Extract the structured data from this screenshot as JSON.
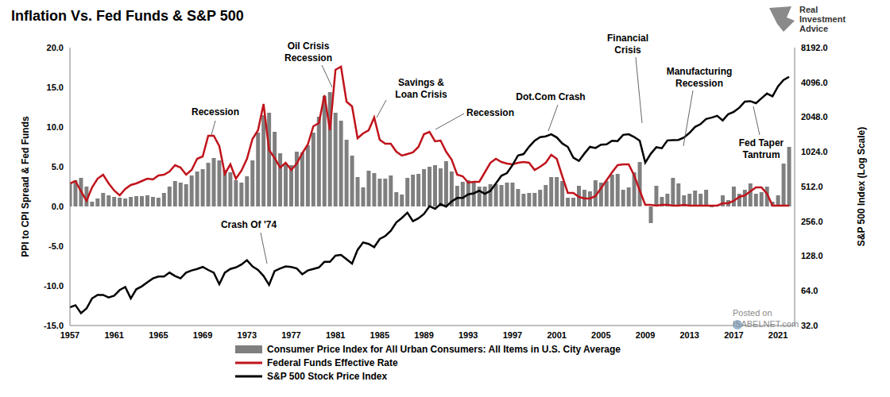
{
  "chart_data": {
    "type": "combo",
    "title": "Inflation Vs. Fed Funds & S&P 500",
    "y_label": "PPI to CPI Spread & Fed Funds",
    "y2_label": "S&P 500 Index (Log Scale)",
    "logo": "Real\nInvestment\nAdvice",
    "watermark": "Posted on\nISABELNET.com",
    "annotations": [
      "Recession",
      "Oil Crisis\nRecession",
      "Savings &\nLoan Crisis",
      "Recession",
      "Dot.Com Crash",
      "Financial\nCrisis",
      "Manufacturing\nRecession",
      "Fed Taper\nTantrum",
      "Crash Of '74"
    ],
    "x": [
      1957.0,
      1957.5,
      1958.0,
      1958.5,
      1959.0,
      1959.5,
      1960.0,
      1960.5,
      1961.0,
      1961.5,
      1962.0,
      1962.5,
      1963.0,
      1963.5,
      1964.0,
      1964.5,
      1965.0,
      1965.5,
      1966.0,
      1966.5,
      1967.0,
      1967.5,
      1968.0,
      1968.5,
      1969.0,
      1969.5,
      1970.0,
      1970.5,
      1971.0,
      1971.5,
      1972.0,
      1972.5,
      1973.0,
      1973.5,
      1974.0,
      1974.5,
      1975.0,
      1975.5,
      1976.0,
      1976.5,
      1977.0,
      1977.5,
      1978.0,
      1978.5,
      1979.0,
      1979.5,
      1980.0,
      1980.5,
      1981.0,
      1981.5,
      1982.0,
      1982.5,
      1983.0,
      1983.5,
      1984.0,
      1984.5,
      1985.0,
      1985.5,
      1986.0,
      1986.5,
      1987.0,
      1987.5,
      1988.0,
      1988.5,
      1989.0,
      1989.5,
      1990.0,
      1990.5,
      1991.0,
      1991.5,
      1992.0,
      1992.5,
      1993.0,
      1993.5,
      1994.0,
      1994.5,
      1995.0,
      1995.5,
      1996.0,
      1996.5,
      1997.0,
      1997.5,
      1998.0,
      1998.5,
      1999.0,
      1999.5,
      2000.0,
      2000.5,
      2001.0,
      2001.5,
      2002.0,
      2002.5,
      2003.0,
      2003.5,
      2004.0,
      2004.5,
      2005.0,
      2005.5,
      2006.0,
      2006.5,
      2007.0,
      2007.5,
      2008.0,
      2008.5,
      2009.0,
      2009.5,
      2010.0,
      2010.5,
      2011.0,
      2011.5,
      2012.0,
      2012.5,
      2013.0,
      2013.5,
      2014.0,
      2014.5,
      2015.0,
      2015.5,
      2016.0,
      2016.5,
      2017.0,
      2017.5,
      2018.0,
      2018.5,
      2019.0,
      2019.5,
      2020.0,
      2020.5,
      2021.0,
      2021.5,
      2022.0
    ],
    "series": [
      {
        "name": "Consumer Price Index for All Urban Consumers: All Items in U.S. City Average",
        "type": "bar",
        "color": "#7f7f7f",
        "values": [
          3.0,
          3.3,
          3.6,
          2.5,
          0.6,
          1.0,
          1.7,
          1.4,
          1.2,
          1.1,
          1.0,
          1.2,
          1.3,
          1.3,
          1.4,
          1.2,
          1.1,
          1.7,
          2.5,
          3.2,
          3.0,
          2.8,
          3.9,
          4.4,
          4.7,
          5.5,
          6.1,
          5.8,
          4.6,
          4.3,
          3.3,
          3.0,
          3.8,
          5.8,
          9.3,
          11.5,
          11.8,
          9.4,
          6.7,
          5.3,
          5.2,
          6.9,
          6.8,
          7.7,
          9.3,
          11.3,
          13.9,
          14.4,
          11.8,
          10.8,
          8.4,
          6.4,
          3.7,
          2.4,
          4.5,
          4.2,
          3.5,
          3.5,
          3.9,
          1.8,
          1.5,
          3.6,
          4.0,
          4.1,
          4.7,
          5.0,
          5.2,
          4.8,
          5.7,
          4.4,
          2.6,
          3.1,
          3.3,
          3.0,
          2.5,
          2.5,
          2.8,
          2.8,
          2.7,
          3.0,
          3.0,
          2.2,
          1.6,
          1.7,
          1.7,
          2.1,
          2.7,
          3.7,
          3.7,
          3.2,
          1.1,
          1.1,
          2.6,
          2.1,
          1.9,
          3.3,
          3.0,
          3.2,
          4.0,
          4.1,
          2.1,
          2.4,
          4.3,
          5.6,
          0.0,
          -2.1,
          2.6,
          1.2,
          1.6,
          3.6,
          2.9,
          1.4,
          1.6,
          2.0,
          1.6,
          2.1,
          -0.1,
          0.2,
          1.4,
          0.8,
          2.5,
          1.6,
          2.1,
          2.9,
          1.6,
          1.8,
          2.5,
          0.6,
          1.4,
          5.4,
          7.5
        ]
      },
      {
        "name": "Federal Funds Effective Rate",
        "type": "line",
        "color": "#c0141c",
        "values": [
          2.9,
          3.2,
          1.9,
          0.7,
          2.4,
          3.5,
          4.0,
          2.9,
          2.0,
          1.4,
          2.2,
          2.7,
          2.9,
          3.2,
          3.5,
          3.4,
          3.9,
          4.0,
          4.4,
          5.2,
          4.9,
          4.0,
          4.6,
          6.0,
          6.3,
          8.9,
          8.9,
          7.6,
          4.1,
          5.3,
          3.5,
          4.5,
          6.0,
          8.5,
          9.6,
          12.9,
          7.1,
          6.1,
          4.9,
          5.5,
          4.6,
          5.4,
          6.7,
          7.8,
          10.1,
          10.5,
          14.0,
          9.6,
          17.2,
          17.6,
          13.2,
          12.6,
          8.6,
          9.2,
          9.6,
          11.2,
          8.4,
          7.9,
          7.9,
          6.9,
          6.4,
          6.6,
          6.8,
          7.5,
          9.1,
          9.4,
          8.2,
          8.3,
          6.9,
          5.9,
          4.0,
          3.8,
          3.0,
          3.1,
          3.1,
          4.3,
          5.5,
          6.0,
          5.6,
          5.4,
          5.3,
          5.5,
          5.6,
          5.5,
          4.6,
          5.0,
          5.5,
          6.5,
          6.0,
          3.8,
          1.7,
          1.7,
          1.2,
          1.0,
          1.0,
          1.3,
          2.3,
          3.3,
          4.3,
          5.2,
          5.3,
          5.3,
          3.9,
          2.0,
          0.2,
          0.2,
          0.1,
          0.2,
          0.2,
          0.1,
          0.1,
          0.2,
          0.1,
          0.1,
          0.1,
          0.1,
          0.1,
          0.1,
          0.4,
          0.4,
          0.7,
          1.2,
          1.4,
          1.9,
          2.4,
          2.4,
          1.6,
          0.1,
          0.1,
          0.1,
          0.1
        ]
      },
      {
        "name": "S&P 500 Stock Price Index",
        "type": "line",
        "color": "#000000",
        "axis": "y2",
        "values": [
          46,
          48,
          41,
          45,
          55,
          59,
          59,
          56,
          58,
          65,
          69,
          55,
          66,
          70,
          76,
          82,
          85,
          85,
          92,
          86,
          82,
          92,
          96,
          99,
          103,
          97,
          92,
          73,
          92,
          99,
          102,
          108,
          118,
          104,
          97,
          86,
          72,
          95,
          100,
          104,
          103,
          100,
          89,
          96,
          99,
          102,
          114,
          114,
          129,
          131,
          120,
          110,
          145,
          168,
          163,
          153,
          180,
          191,
          212,
          251,
          274,
          304,
          257,
          272,
          297,
          346,
          329,
          361,
          343,
          380,
          408,
          408,
          439,
          448,
          472,
          444,
          470,
          545,
          636,
          670,
          786,
          954,
          980,
          1134,
          1279,
          1373,
          1394,
          1454,
          1366,
          1211,
          1130,
          912,
          855,
          990,
          1132,
          1105,
          1181,
          1191,
          1280,
          1270,
          1438,
          1455,
          1378,
          1280,
          825,
          987,
          1123,
          1101,
          1286,
          1292,
          1300,
          1362,
          1498,
          1685,
          1783,
          1973,
          2028,
          2103,
          1918,
          2173,
          2275,
          2470,
          2790,
          2816,
          2704,
          2980,
          3278,
          3100,
          3793,
          4297,
          4574
        ]
      }
    ],
    "xlim": [
      1957,
      2022.5
    ],
    "xticks": [
      1957,
      1961,
      1965,
      1969,
      1973,
      1977,
      1981,
      1985,
      1989,
      1993,
      1997,
      2001,
      2005,
      2009,
      2013,
      2017,
      2021
    ],
    "ylim": [
      -15,
      20
    ],
    "yticks": [
      {
        "value": -15,
        "label": "-15.0"
      },
      {
        "value": -10,
        "label": "-10.0"
      },
      {
        "value": -5,
        "label": "-5.0"
      },
      {
        "value": 0,
        "label": "0.0"
      },
      {
        "value": 5,
        "label": "5.0"
      },
      {
        "value": 10,
        "label": "10.0"
      },
      {
        "value": 15,
        "label": "15.0"
      },
      {
        "value": 20,
        "label": "20.0"
      }
    ],
    "y2lim": [
      32,
      8192
    ],
    "y2ticks": [
      {
        "value": 32,
        "label": "32.0"
      },
      {
        "value": 64,
        "label": "64.0"
      },
      {
        "value": 128,
        "label": "128.0"
      },
      {
        "value": 256,
        "label": "256.0"
      },
      {
        "value": 512,
        "label": "512.0"
      },
      {
        "value": 1024,
        "label": "1024.0"
      },
      {
        "value": 2048,
        "label": "2048.0"
      },
      {
        "value": 4096,
        "label": "4096.0"
      },
      {
        "value": 8192,
        "label": "8192.0"
      }
    ],
    "log": "y2",
    "grid": false,
    "legend": "bottom"
  }
}
